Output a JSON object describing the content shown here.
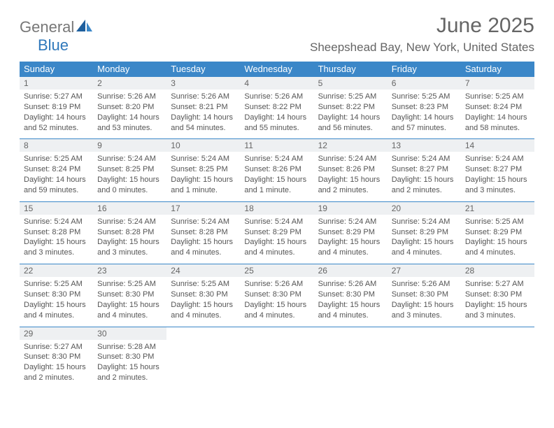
{
  "brand": {
    "part1": "General",
    "part2": "Blue"
  },
  "title": "June 2025",
  "location": "Sheepshead Bay, New York, United States",
  "colors": {
    "header_bg": "#3b87c8",
    "header_text": "#ffffff",
    "daynum_bg": "#eef0f2",
    "text": "#555555",
    "rule": "#3b87c8",
    "brand_gray": "#777777",
    "brand_blue": "#2f78bb"
  },
  "day_headers": [
    "Sunday",
    "Monday",
    "Tuesday",
    "Wednesday",
    "Thursday",
    "Friday",
    "Saturday"
  ],
  "weeks": [
    [
      {
        "num": "1",
        "sunrise": "Sunrise: 5:27 AM",
        "sunset": "Sunset: 8:19 PM",
        "day1": "Daylight: 14 hours",
        "day2": "and 52 minutes."
      },
      {
        "num": "2",
        "sunrise": "Sunrise: 5:26 AM",
        "sunset": "Sunset: 8:20 PM",
        "day1": "Daylight: 14 hours",
        "day2": "and 53 minutes."
      },
      {
        "num": "3",
        "sunrise": "Sunrise: 5:26 AM",
        "sunset": "Sunset: 8:21 PM",
        "day1": "Daylight: 14 hours",
        "day2": "and 54 minutes."
      },
      {
        "num": "4",
        "sunrise": "Sunrise: 5:26 AM",
        "sunset": "Sunset: 8:22 PM",
        "day1": "Daylight: 14 hours",
        "day2": "and 55 minutes."
      },
      {
        "num": "5",
        "sunrise": "Sunrise: 5:25 AM",
        "sunset": "Sunset: 8:22 PM",
        "day1": "Daylight: 14 hours",
        "day2": "and 56 minutes."
      },
      {
        "num": "6",
        "sunrise": "Sunrise: 5:25 AM",
        "sunset": "Sunset: 8:23 PM",
        "day1": "Daylight: 14 hours",
        "day2": "and 57 minutes."
      },
      {
        "num": "7",
        "sunrise": "Sunrise: 5:25 AM",
        "sunset": "Sunset: 8:24 PM",
        "day1": "Daylight: 14 hours",
        "day2": "and 58 minutes."
      }
    ],
    [
      {
        "num": "8",
        "sunrise": "Sunrise: 5:25 AM",
        "sunset": "Sunset: 8:24 PM",
        "day1": "Daylight: 14 hours",
        "day2": "and 59 minutes."
      },
      {
        "num": "9",
        "sunrise": "Sunrise: 5:24 AM",
        "sunset": "Sunset: 8:25 PM",
        "day1": "Daylight: 15 hours",
        "day2": "and 0 minutes."
      },
      {
        "num": "10",
        "sunrise": "Sunrise: 5:24 AM",
        "sunset": "Sunset: 8:25 PM",
        "day1": "Daylight: 15 hours",
        "day2": "and 1 minute."
      },
      {
        "num": "11",
        "sunrise": "Sunrise: 5:24 AM",
        "sunset": "Sunset: 8:26 PM",
        "day1": "Daylight: 15 hours",
        "day2": "and 1 minute."
      },
      {
        "num": "12",
        "sunrise": "Sunrise: 5:24 AM",
        "sunset": "Sunset: 8:26 PM",
        "day1": "Daylight: 15 hours",
        "day2": "and 2 minutes."
      },
      {
        "num": "13",
        "sunrise": "Sunrise: 5:24 AM",
        "sunset": "Sunset: 8:27 PM",
        "day1": "Daylight: 15 hours",
        "day2": "and 2 minutes."
      },
      {
        "num": "14",
        "sunrise": "Sunrise: 5:24 AM",
        "sunset": "Sunset: 8:27 PM",
        "day1": "Daylight: 15 hours",
        "day2": "and 3 minutes."
      }
    ],
    [
      {
        "num": "15",
        "sunrise": "Sunrise: 5:24 AM",
        "sunset": "Sunset: 8:28 PM",
        "day1": "Daylight: 15 hours",
        "day2": "and 3 minutes."
      },
      {
        "num": "16",
        "sunrise": "Sunrise: 5:24 AM",
        "sunset": "Sunset: 8:28 PM",
        "day1": "Daylight: 15 hours",
        "day2": "and 3 minutes."
      },
      {
        "num": "17",
        "sunrise": "Sunrise: 5:24 AM",
        "sunset": "Sunset: 8:28 PM",
        "day1": "Daylight: 15 hours",
        "day2": "and 4 minutes."
      },
      {
        "num": "18",
        "sunrise": "Sunrise: 5:24 AM",
        "sunset": "Sunset: 8:29 PM",
        "day1": "Daylight: 15 hours",
        "day2": "and 4 minutes."
      },
      {
        "num": "19",
        "sunrise": "Sunrise: 5:24 AM",
        "sunset": "Sunset: 8:29 PM",
        "day1": "Daylight: 15 hours",
        "day2": "and 4 minutes."
      },
      {
        "num": "20",
        "sunrise": "Sunrise: 5:24 AM",
        "sunset": "Sunset: 8:29 PM",
        "day1": "Daylight: 15 hours",
        "day2": "and 4 minutes."
      },
      {
        "num": "21",
        "sunrise": "Sunrise: 5:25 AM",
        "sunset": "Sunset: 8:29 PM",
        "day1": "Daylight: 15 hours",
        "day2": "and 4 minutes."
      }
    ],
    [
      {
        "num": "22",
        "sunrise": "Sunrise: 5:25 AM",
        "sunset": "Sunset: 8:30 PM",
        "day1": "Daylight: 15 hours",
        "day2": "and 4 minutes."
      },
      {
        "num": "23",
        "sunrise": "Sunrise: 5:25 AM",
        "sunset": "Sunset: 8:30 PM",
        "day1": "Daylight: 15 hours",
        "day2": "and 4 minutes."
      },
      {
        "num": "24",
        "sunrise": "Sunrise: 5:25 AM",
        "sunset": "Sunset: 8:30 PM",
        "day1": "Daylight: 15 hours",
        "day2": "and 4 minutes."
      },
      {
        "num": "25",
        "sunrise": "Sunrise: 5:26 AM",
        "sunset": "Sunset: 8:30 PM",
        "day1": "Daylight: 15 hours",
        "day2": "and 4 minutes."
      },
      {
        "num": "26",
        "sunrise": "Sunrise: 5:26 AM",
        "sunset": "Sunset: 8:30 PM",
        "day1": "Daylight: 15 hours",
        "day2": "and 4 minutes."
      },
      {
        "num": "27",
        "sunrise": "Sunrise: 5:26 AM",
        "sunset": "Sunset: 8:30 PM",
        "day1": "Daylight: 15 hours",
        "day2": "and 3 minutes."
      },
      {
        "num": "28",
        "sunrise": "Sunrise: 5:27 AM",
        "sunset": "Sunset: 8:30 PM",
        "day1": "Daylight: 15 hours",
        "day2": "and 3 minutes."
      }
    ],
    [
      {
        "num": "29",
        "sunrise": "Sunrise: 5:27 AM",
        "sunset": "Sunset: 8:30 PM",
        "day1": "Daylight: 15 hours",
        "day2": "and 2 minutes."
      },
      {
        "num": "30",
        "sunrise": "Sunrise: 5:28 AM",
        "sunset": "Sunset: 8:30 PM",
        "day1": "Daylight: 15 hours",
        "day2": "and 2 minutes."
      },
      null,
      null,
      null,
      null,
      null
    ]
  ]
}
